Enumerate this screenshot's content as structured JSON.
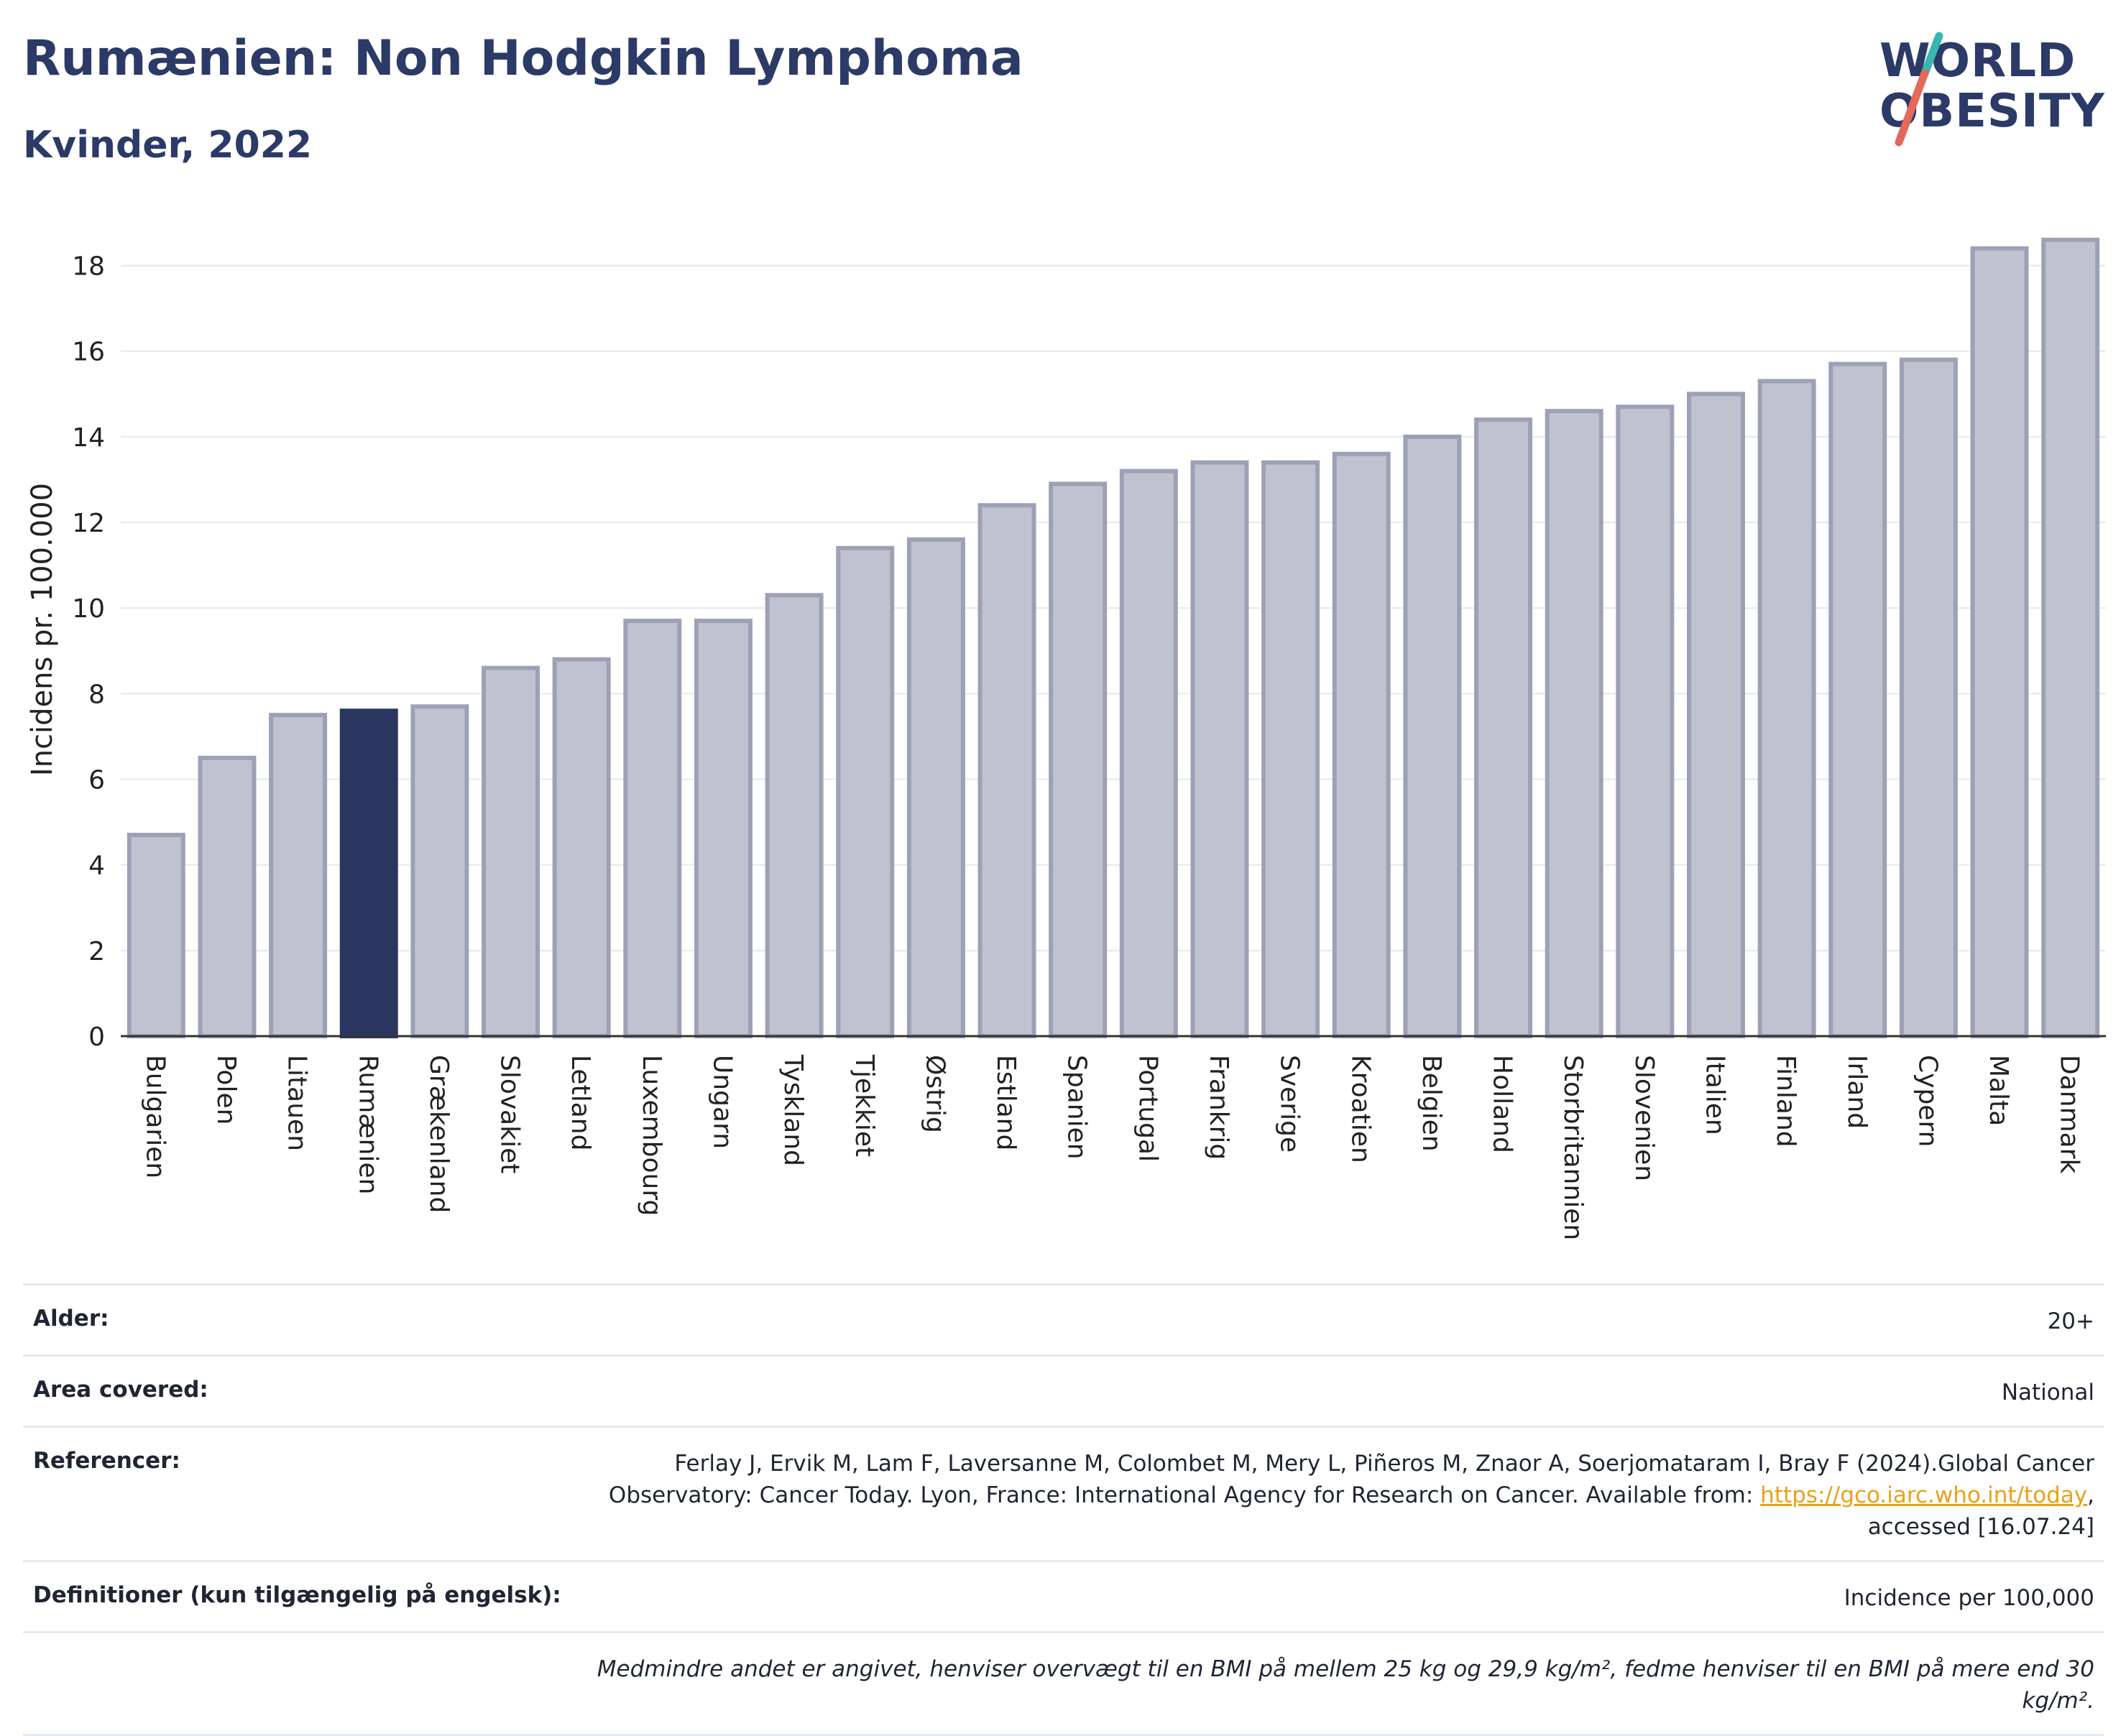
{
  "header": {
    "title": "Rumænien: Non Hodgkin Lymphoma",
    "subtitle": "Kvinder, 2022"
  },
  "logo": {
    "line1": "WORLD",
    "line2": "OBESITY",
    "slash_colors": [
      "#38b6b0",
      "#e4685c"
    ]
  },
  "chart_data": {
    "type": "bar",
    "ylabel": "Incidens pr. 100.000",
    "xlabel": "",
    "ylim": [
      0,
      19
    ],
    "yticks": [
      0,
      2,
      4,
      6,
      8,
      10,
      12,
      14,
      16,
      18
    ],
    "grid": true,
    "highlight": "Rumænien",
    "colors": {
      "bar": "#c0c3cf",
      "bar_border": "#9da1b6",
      "highlight": "#2b3660",
      "grid": "#e6e8ee",
      "axis": "#333333"
    },
    "categories": [
      "Bulgarien",
      "Polen",
      "Litauen",
      "Rumænien",
      "Grækenland",
      "Slovakiet",
      "Letland",
      "Luxembourg",
      "Ungarn",
      "Tyskland",
      "Tjekkiet",
      "Østrig",
      "Estland",
      "Spanien",
      "Portugal",
      "Frankrig",
      "Sverige",
      "Kroatien",
      "Belgien",
      "Holland",
      "Storbritannien",
      "Slovenien",
      "Italien",
      "Finland",
      "Irland",
      "Cypern",
      "Malta",
      "Danmark"
    ],
    "values": [
      4.7,
      6.5,
      7.5,
      7.6,
      7.7,
      8.6,
      8.8,
      9.7,
      9.7,
      10.3,
      11.4,
      11.6,
      12.4,
      12.9,
      13.2,
      13.4,
      13.4,
      13.6,
      14.0,
      14.4,
      14.6,
      14.7,
      15.0,
      15.3,
      15.7,
      15.8,
      18.4,
      18.6
    ]
  },
  "info": {
    "age_label": "Alder:",
    "age_value": "20+",
    "area_label": "Area covered:",
    "area_value": "National",
    "refs_label": "Referencer:",
    "refs_text_1": "Ferlay J, Ervik M, Lam F, Laversanne M, Colombet M, Mery L, Piñeros M, Znaor A, Soerjomataram I, Bray F (2024).Global Cancer Observatory: Cancer Today. Lyon, France: International Agency for Research on Cancer. Available from: ",
    "refs_link": "https://gco.iarc.who.int/today",
    "refs_text_2": ", accessed [16.07.24]",
    "def_label": "Definitioner (kun tilgængelig på engelsk):",
    "def_value": "Incidence per 100,000",
    "note": "Medmindre andet er angivet, henviser overvægt til en BMI på mellem 25 kg og 29,9 kg/m², fedme henviser til en BMI på mere end 30 kg/m²."
  }
}
